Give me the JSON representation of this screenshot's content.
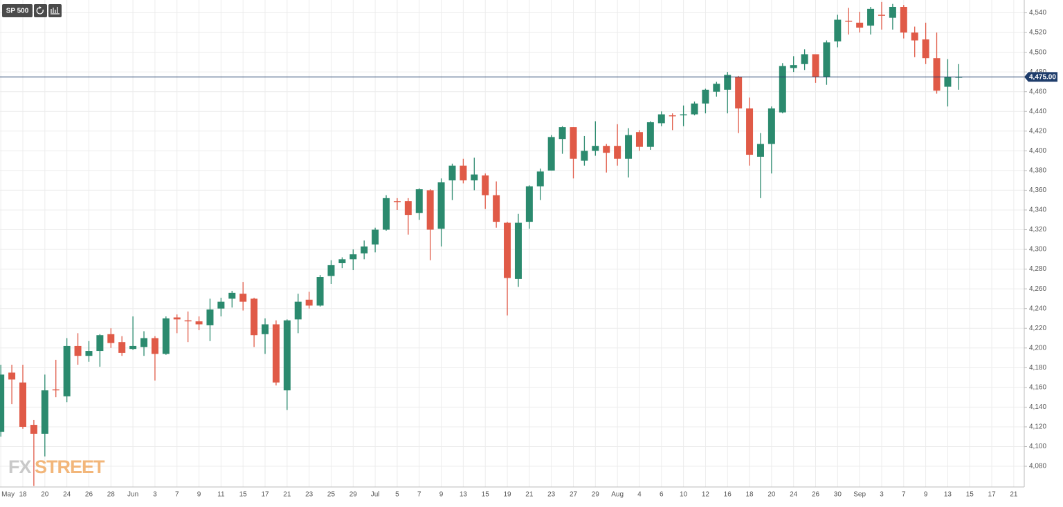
{
  "chart_data": {
    "type": "candlestick",
    "title": "SP 500",
    "watermark": [
      "FX",
      "STREET"
    ],
    "up_color": "#2b8a6e",
    "down_color": "#e05a47",
    "grid": true,
    "ylim": [
      4059,
      4553
    ],
    "yticks": [
      {
        "value": 4080,
        "label": "4,080"
      },
      {
        "value": 4100,
        "label": "4,100"
      },
      {
        "value": 4120,
        "label": "4,120"
      },
      {
        "value": 4140,
        "label": "4,140"
      },
      {
        "value": 4160,
        "label": "4,160"
      },
      {
        "value": 4180,
        "label": "4,180"
      },
      {
        "value": 4200,
        "label": "4,200"
      },
      {
        "value": 4220,
        "label": "4,220"
      },
      {
        "value": 4240,
        "label": "4,240"
      },
      {
        "value": 4260,
        "label": "4,260"
      },
      {
        "value": 4280,
        "label": "4,280"
      },
      {
        "value": 4300,
        "label": "4,300"
      },
      {
        "value": 4320,
        "label": "4,320"
      },
      {
        "value": 4340,
        "label": "4,340"
      },
      {
        "value": 4360,
        "label": "4,360"
      },
      {
        "value": 4380,
        "label": "4,380"
      },
      {
        "value": 4400,
        "label": "4,400"
      },
      {
        "value": 4420,
        "label": "4,420"
      },
      {
        "value": 4440,
        "label": "4,440"
      },
      {
        "value": 4460,
        "label": "4,460"
      },
      {
        "value": 4480,
        "label": "4,480"
      },
      {
        "value": 4500,
        "label": "4,500"
      },
      {
        "value": 4520,
        "label": "4,520"
      },
      {
        "value": 4540,
        "label": "4,540"
      }
    ],
    "current_price": {
      "value": 4475,
      "label": "4,475.00"
    },
    "current_price_color": "#1f3d6b",
    "categories": [
      "May",
      null,
      "18",
      null,
      "20",
      null,
      "24",
      null,
      "26",
      null,
      "28",
      null,
      "Jun",
      null,
      "3",
      null,
      "7",
      null,
      "9",
      null,
      "11",
      null,
      "15",
      null,
      "17",
      null,
      "21",
      null,
      "23",
      null,
      "25",
      null,
      "29",
      null,
      "Jul",
      null,
      "5",
      null,
      "7",
      null,
      "9",
      null,
      "13",
      null,
      "15",
      null,
      "19",
      null,
      "21",
      null,
      "23",
      null,
      "27",
      null,
      "29",
      null,
      "Aug",
      null,
      "4",
      null,
      "6",
      null,
      "10",
      null,
      "12",
      null,
      "16",
      null,
      "18",
      null,
      "20",
      null,
      "24",
      null,
      "26",
      null,
      "30",
      null,
      "Sep",
      null,
      "3",
      null,
      "7",
      null,
      "9",
      null,
      "13",
      null,
      "15",
      null,
      "17",
      null,
      "21"
    ],
    "open": [
      4115,
      4175,
      4165,
      4122,
      4113,
      4158,
      4151,
      4202,
      4192,
      4197,
      4214,
      4206,
      4199,
      4201,
      4210,
      4194,
      4231,
      4228,
      4227,
      4223,
      4240,
      4250,
      4255,
      4250,
      4214,
      4224,
      4157,
      4229,
      4249,
      4243,
      4273,
      4286,
      4290,
      4296,
      4305,
      4320,
      4349,
      4349,
      4337,
      4360,
      4321,
      4370,
      4385,
      4370,
      4375,
      4355,
      4327,
      4270,
      4328,
      4364,
      4380,
      4412,
      4424,
      4390,
      4400,
      4405,
      4405,
      4392,
      4419,
      4404,
      4428,
      4436,
      4436,
      4437,
      4448,
      4460,
      4462,
      4475,
      4443,
      4394,
      4407,
      4439,
      4484,
      4488,
      4498,
      4475,
      4511,
      4532,
      4530,
      4527,
      4538,
      4535,
      4546,
      4520,
      4513,
      4494,
      4465,
      4475,
      null,
      null,
      null,
      null,
      null
    ],
    "high": [
      4183,
      4183,
      4183,
      4127,
      4173,
      4188,
      4210,
      4215,
      4207,
      4214,
      4220,
      4212,
      4232,
      4217,
      4212,
      4232,
      4234,
      4237,
      4232,
      4250,
      4251,
      4258,
      4267,
      4251,
      4230,
      4228,
      4229,
      4255,
      4257,
      4274,
      4289,
      4292,
      4300,
      4309,
      4322,
      4355,
      4352,
      4352,
      4362,
      4361,
      4372,
      4387,
      4392,
      4393,
      4377,
      4369,
      4328,
      4336,
      4365,
      4382,
      4416,
      4425,
      4424,
      4415,
      4430,
      4407,
      4427,
      4423,
      4421,
      4430,
      4440,
      4438,
      4446,
      4450,
      4463,
      4470,
      4480,
      4476,
      4454,
      4418,
      4445,
      4489,
      4496,
      4503,
      4498,
      4512,
      4538,
      4545,
      4541,
      4546,
      4551,
      4549,
      4548,
      4526,
      4530,
      4520,
      4493,
      4488,
      null,
      null,
      null,
      null,
      null
    ],
    "low": [
      4110,
      4143,
      4118,
      4060,
      4090,
      4150,
      4145,
      4183,
      4186,
      4181,
      4200,
      4192,
      4198,
      4192,
      4167,
      4193,
      4215,
      4206,
      4218,
      4207,
      4232,
      4241,
      4238,
      4201,
      4194,
      4162,
      4137,
      4215,
      4240,
      4242,
      4265,
      4281,
      4279,
      4290,
      4297,
      4319,
      4340,
      4315,
      4330,
      4289,
      4303,
      4350,
      4367,
      4360,
      4341,
      4322,
      4233,
      4262,
      4321,
      4350,
      4380,
      4397,
      4372,
      4385,
      4395,
      4378,
      4385,
      4373,
      4400,
      4401,
      4425,
      4421,
      4425,
      4436,
      4438,
      4455,
      4438,
      4418,
      4385,
      4352,
      4377,
      4438,
      4480,
      4482,
      4469,
      4467,
      4505,
      4518,
      4520,
      4518,
      4523,
      4523,
      4514,
      4495,
      4488,
      4458,
      4445,
      4462,
      null,
      null,
      null,
      null,
      null
    ],
    "close": [
      4173,
      4168,
      4120,
      4113,
      4157,
      4157,
      4202,
      4192,
      4197,
      4213,
      4205,
      4195,
      4202,
      4210,
      4194,
      4230,
      4229,
      4227,
      4224,
      4239,
      4247,
      4256,
      4247,
      4213,
      4224,
      4165,
      4228,
      4247,
      4243,
      4272,
      4284,
      4290,
      4295,
      4303,
      4320,
      4352,
      4348,
      4335,
      4361,
      4320,
      4368,
      4385,
      4370,
      4376,
      4355,
      4328,
      4271,
      4327,
      4364,
      4379,
      4414,
      4424,
      4392,
      4400,
      4405,
      4398,
      4392,
      4416,
      4404,
      4429,
      4437,
      4435,
      4437,
      4448,
      4462,
      4468,
      4477,
      4443,
      4396,
      4407,
      4443,
      4486,
      4487,
      4498,
      4475,
      4510,
      4533,
      4531,
      4525,
      4544,
      4537,
      4546,
      4520,
      4512,
      4494,
      4461,
      4475,
      4475,
      null,
      null,
      null,
      null,
      null
    ]
  }
}
